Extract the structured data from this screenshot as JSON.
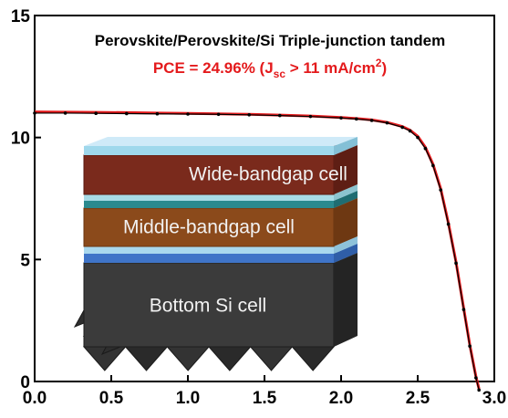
{
  "chart_data": {
    "type": "line",
    "title": "Perovskite/Perovskite/Si Triple-junction tandem",
    "subtitle": {
      "prefix": "PCE = 24.96% (J",
      "sub": "sc",
      "middle": " > 11 mA/cm",
      "sup": "2",
      "suffix": ")"
    },
    "xlim": [
      0.0,
      3.0
    ],
    "ylim": [
      0,
      15
    ],
    "x_ticks": [
      "0.0",
      "0.5",
      "1.0",
      "1.5",
      "2.0",
      "2.5",
      "3.0"
    ],
    "y_ticks": [
      "0",
      "5",
      "10",
      "15"
    ],
    "xlabel": "",
    "ylabel": "",
    "grid": false,
    "series": [
      {
        "color": "#e41a1c",
        "style": "line",
        "x": [
          0.0,
          0.2,
          0.4,
          0.6,
          0.8,
          1.0,
          1.2,
          1.4,
          1.6,
          1.8,
          2.0,
          2.1,
          2.2,
          2.3,
          2.4,
          2.45,
          2.5,
          2.55,
          2.6,
          2.65,
          2.7,
          2.75,
          2.8,
          2.84,
          2.88,
          2.9
        ],
        "y": [
          11.05,
          11.04,
          11.03,
          11.02,
          11.0,
          10.99,
          10.97,
          10.95,
          10.92,
          10.88,
          10.82,
          10.78,
          10.72,
          10.62,
          10.45,
          10.3,
          10.05,
          9.6,
          8.9,
          7.9,
          6.5,
          4.9,
          3.0,
          1.5,
          0.2,
          -0.3
        ]
      },
      {
        "color": "#000000",
        "style": "markers",
        "x": [
          0.0,
          0.2,
          0.4,
          0.6,
          0.8,
          1.0,
          1.2,
          1.4,
          1.6,
          1.8,
          2.0,
          2.1,
          2.2,
          2.3,
          2.4,
          2.45,
          2.5,
          2.55,
          2.6,
          2.65,
          2.7,
          2.75,
          2.8,
          2.84,
          2.88,
          2.9
        ],
        "y": [
          11.0,
          11.0,
          10.99,
          10.98,
          10.97,
          10.96,
          10.95,
          10.93,
          10.9,
          10.86,
          10.8,
          10.76,
          10.7,
          10.6,
          10.42,
          10.27,
          10.0,
          9.55,
          8.85,
          7.85,
          6.45,
          4.85,
          2.95,
          1.45,
          0.15,
          -0.35
        ]
      }
    ]
  },
  "inset": {
    "layers": [
      {
        "label": "Wide-bandgap cell",
        "color": "#7a2a1c"
      },
      {
        "label": "Middle-bandgap cell",
        "color": "#8a4a1a"
      },
      {
        "label": "Bottom Si cell",
        "color": "#3a3a3a"
      }
    ],
    "thin_layer_colors": [
      "#9fd8ec",
      "#a8dbe6",
      "#2a8a8f",
      "#b8dff0",
      "#4a7fd0"
    ]
  }
}
